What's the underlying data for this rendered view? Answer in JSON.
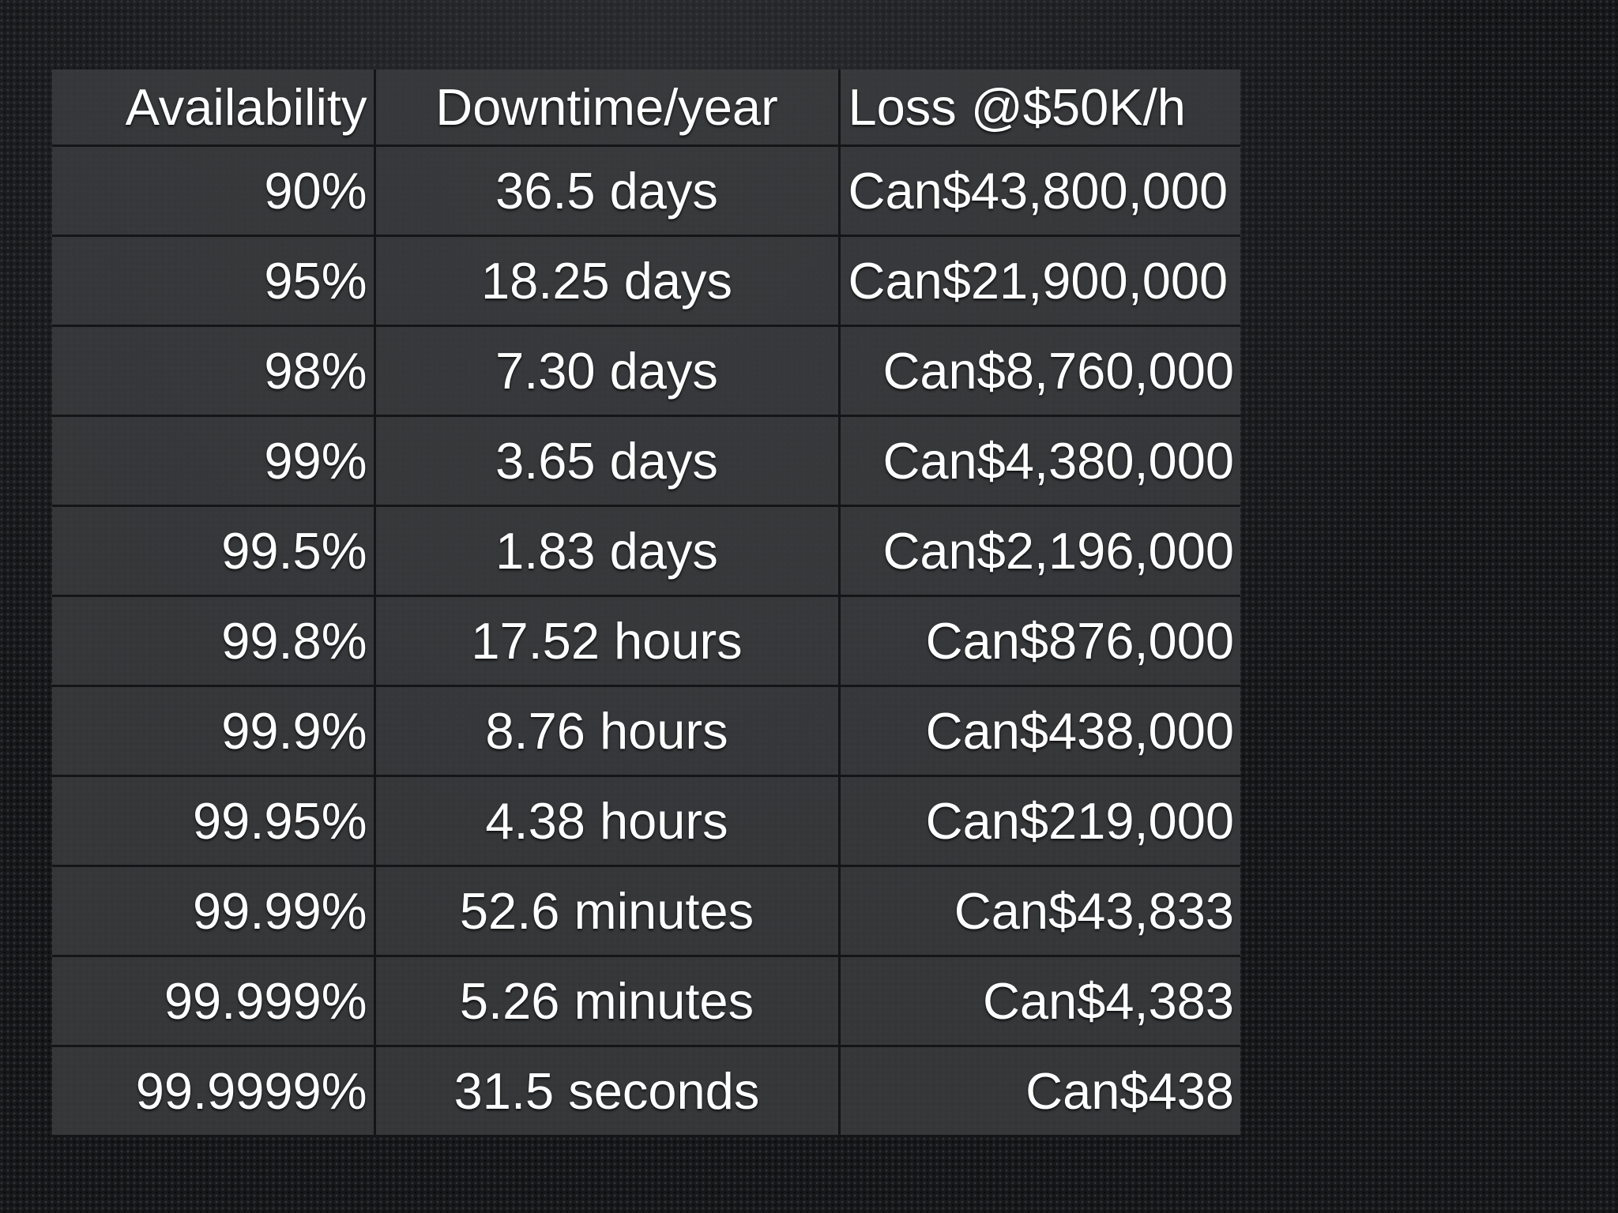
{
  "table": {
    "headers": {
      "availability": "Availability",
      "downtime": "Downtime/year",
      "loss": "Loss @$50K/h"
    },
    "rows": [
      {
        "availability": "90%",
        "downtime": "36.5 days",
        "loss": "Can$43,800,000"
      },
      {
        "availability": "95%",
        "downtime": "18.25 days",
        "loss": "Can$21,900,000"
      },
      {
        "availability": "98%",
        "downtime": "7.30 days",
        "loss": "Can$8,760,000"
      },
      {
        "availability": "99%",
        "downtime": "3.65 days",
        "loss": "Can$4,380,000"
      },
      {
        "availability": "99.5%",
        "downtime": "1.83 days",
        "loss": "Can$2,196,000"
      },
      {
        "availability": "99.8%",
        "downtime": "17.52 hours",
        "loss": "Can$876,000"
      },
      {
        "availability": "99.9%",
        "downtime": "8.76 hours",
        "loss": "Can$438,000"
      },
      {
        "availability": "99.95%",
        "downtime": "4.38 hours",
        "loss": "Can$219,000"
      },
      {
        "availability": "99.99%",
        "downtime": "52.6 minutes",
        "loss": "Can$43,833"
      },
      {
        "availability": "99.999%",
        "downtime": "5.26 minutes",
        "loss": "Can$4,383"
      },
      {
        "availability": "99.9999%",
        "downtime": "31.5 seconds",
        "loss": "Can$438"
      }
    ]
  }
}
